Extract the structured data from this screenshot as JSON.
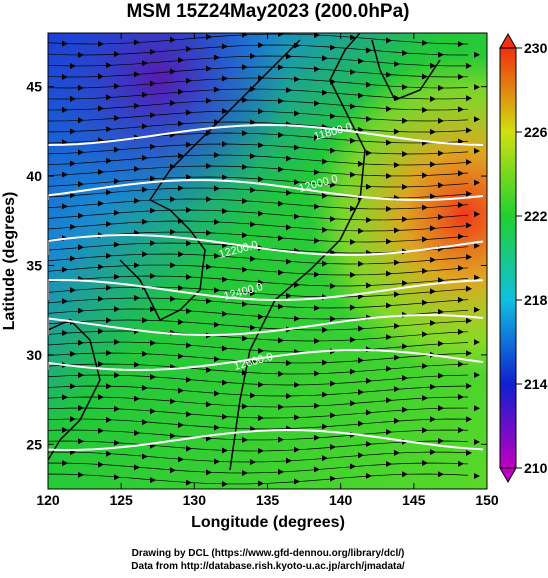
{
  "title": "MSM 15Z24May2023 (200.0hPa)",
  "x_axis": {
    "label": "Longitude (degrees)",
    "lim": [
      120,
      150
    ],
    "ticks": [
      120,
      125,
      130,
      135,
      140,
      145,
      150
    ]
  },
  "y_axis": {
    "label": "Latitude  (degrees)",
    "lim": [
      22.5,
      48
    ],
    "ticks": [
      25,
      30,
      35,
      40,
      45
    ]
  },
  "colorbar": {
    "lim": [
      210,
      230
    ],
    "ticks": [
      210,
      214,
      218,
      222,
      226,
      230
    ]
  },
  "contour_labels": [
    "11800.0",
    "12000.0",
    "12200.0",
    "12400.0",
    "12600.0"
  ],
  "credits": [
    "Drawing by DCL (https://www.gfd-dennou.org/library/dcl/)",
    "Data from http://database.rish.kyoto-u.ac.jp/arch/jmadata/"
  ]
}
